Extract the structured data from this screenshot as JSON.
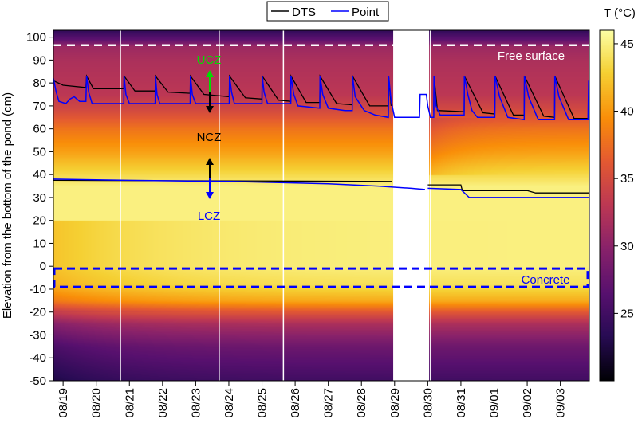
{
  "chart_data": {
    "type": "heatmap",
    "ylabel": "Elevation from the bottom of the pond (cm)",
    "xlabel": "",
    "ylim": [
      -50,
      103
    ],
    "xlim": [
      "08/18 17:00",
      "09/03 21:00"
    ],
    "yticks": [
      100,
      90,
      80,
      70,
      60,
      50,
      40,
      30,
      20,
      10,
      0,
      -10,
      -20,
      -30,
      -40,
      -50
    ],
    "xticks": [
      "08/19",
      "08/20",
      "08/21",
      "08/22",
      "08/23",
      "08/24",
      "08/25",
      "08/26",
      "08/27",
      "08/28",
      "08/29",
      "08/30",
      "08/31",
      "09/01",
      "09/02",
      "09/03"
    ],
    "colorbar": {
      "label": "T (°C)",
      "range": [
        20,
        46
      ],
      "ticks": [
        45,
        40,
        35,
        30,
        25
      ],
      "colormap": "inferno"
    },
    "temperature_profile": [
      [
        103,
        24
      ],
      [
        99,
        27
      ],
      [
        96,
        31
      ],
      [
        90,
        32
      ],
      [
        75,
        33
      ],
      [
        68,
        35
      ],
      [
        60,
        38
      ],
      [
        50,
        40.5
      ],
      [
        42,
        43
      ],
      [
        35,
        45
      ],
      [
        0,
        45
      ],
      [
        -8,
        44
      ],
      [
        -15,
        41
      ],
      [
        -20,
        36
      ],
      [
        -25,
        32
      ],
      [
        -35,
        28
      ],
      [
        -50,
        25
      ]
    ],
    "data_gap": [
      "08/28 23:00",
      "08/30 01:00"
    ],
    "vertical_markers": [
      "08/20 17:30",
      "08/23 17:00",
      "08/25 15:30",
      "08/30 02:00"
    ],
    "legend": {
      "placement": "top-center",
      "entries": [
        {
          "name": "DTS",
          "color": "#000000"
        },
        {
          "name": "Point",
          "color": "#0000ff"
        }
      ]
    },
    "series": [
      {
        "name": "DTS",
        "color": "#000000",
        "segments": [
          [
            [
              "08/18 17:00",
              81
            ],
            [
              "08/19 00:00",
              79
            ],
            [
              "08/19 16:30",
              78
            ],
            [
              "08/19 17:00",
              83
            ],
            [
              "08/19 22:00",
              77.5
            ],
            [
              "08/20 20:00",
              77.5
            ],
            [
              "08/20 20:10",
              83
            ],
            [
              "08/21 04:00",
              76.5
            ],
            [
              "08/21 18:40",
              76.5
            ],
            [
              "08/21 18:50",
              83
            ],
            [
              "08/22 04:00",
              76
            ],
            [
              "08/22 20:00",
              75.5
            ],
            [
              "08/22 20:10",
              83
            ],
            [
              "08/23 06:00",
              75
            ],
            [
              "08/24 00:20",
              74
            ],
            [
              "08/24 00:30",
              83
            ],
            [
              "08/24 12:00",
              73.5
            ],
            [
              "08/25 00:00",
              73
            ],
            [
              "08/25 00:10",
              83
            ],
            [
              "08/25 12:00",
              72.5
            ],
            [
              "08/25 20:50",
              72
            ],
            [
              "08/25 21:00",
              83
            ],
            [
              "08/26 08:00",
              71.5
            ],
            [
              "08/26 17:50",
              71.5
            ],
            [
              "08/26 18:00",
              83
            ],
            [
              "08/27 06:00",
              71
            ],
            [
              "08/27 17:20",
              70.5
            ],
            [
              "08/27 17:30",
              83
            ],
            [
              "08/28 06:00",
              70
            ],
            [
              "08/28 19:30",
              70
            ],
            [
              "08/28 19:40",
              83
            ],
            [
              "08/28 21:30",
              70
            ]
          ],
          [
            [
              "08/30 04:20",
              68
            ],
            [
              "08/30 04:30",
              83
            ],
            [
              "08/30 07:00",
              68
            ],
            [
              "08/31 02:20",
              67.5
            ],
            [
              "08/31 02:30",
              83
            ],
            [
              "08/31 16:00",
              67
            ],
            [
              "09/01 00:30",
              66.5
            ],
            [
              "09/01 00:45",
              83
            ],
            [
              "09/01 14:00",
              66
            ],
            [
              "09/01 21:50",
              66
            ],
            [
              "09/01 22:00",
              83
            ],
            [
              "09/02 12:00",
              65.5
            ],
            [
              "09/02 19:50",
              65
            ],
            [
              "09/02 20:00",
              83
            ],
            [
              "09/03 10:00",
              64.5
            ],
            [
              "09/03 20:30",
              64.5
            ]
          ],
          [
            [
              "08/18 17:00",
              37.5
            ],
            [
              "08/28 22:00",
              37
            ]
          ],
          [
            [
              "08/30 00:00",
              35.5
            ],
            [
              "08/31 00:00",
              35.5
            ],
            [
              "08/31 01:00",
              33
            ],
            [
              "09/02 00:00",
              33
            ],
            [
              "09/02 06:00",
              32
            ],
            [
              "09/03 20:30",
              32
            ]
          ]
        ]
      },
      {
        "name": "Point",
        "color": "#0000ff",
        "segments": [
          [
            [
              "08/18 17:00",
              82
            ],
            [
              "08/18 19:00",
              76
            ],
            [
              "08/18 21:00",
              72
            ],
            [
              "08/19 02:00",
              71
            ],
            [
              "08/19 05:00",
              73
            ],
            [
              "08/19 08:00",
              74
            ],
            [
              "08/19 12:00",
              72
            ],
            [
              "08/19 16:30",
              72
            ],
            [
              "08/19 17:00",
              83
            ],
            [
              "08/19 18:30",
              76
            ],
            [
              "08/19 21:00",
              71
            ],
            [
              "08/20 20:00",
              71
            ],
            [
              "08/20 20:10",
              83
            ],
            [
              "08/20 21:30",
              75
            ],
            [
              "08/21 00:00",
              71
            ],
            [
              "08/21 18:40",
              71
            ],
            [
              "08/21 18:50",
              83
            ],
            [
              "08/21 20:00",
              75
            ],
            [
              "08/21 22:00",
              71
            ],
            [
              "08/22 20:00",
              71
            ],
            [
              "08/22 20:10",
              83
            ],
            [
              "08/22 21:30",
              75
            ],
            [
              "08/23 00:00",
              71
            ],
            [
              "08/24 00:20",
              71
            ],
            [
              "08/24 00:30",
              83
            ],
            [
              "08/24 02:00",
              76
            ],
            [
              "08/24 04:00",
              71
            ],
            [
              "08/25 00:00",
              71
            ],
            [
              "08/25 00:10",
              83
            ],
            [
              "08/25 01:30",
              76
            ],
            [
              "08/25 04:00",
              71
            ],
            [
              "08/25 20:50",
              71
            ],
            [
              "08/25 21:00",
              83
            ],
            [
              "08/25 23:00",
              75
            ],
            [
              "08/26 02:00",
              70
            ],
            [
              "08/26 17:50",
              69
            ],
            [
              "08/26 18:00",
              83
            ],
            [
              "08/26 20:00",
              75
            ],
            [
              "08/27 00:00",
              69
            ],
            [
              "08/27 12:00",
              68
            ],
            [
              "08/27 17:20",
              68
            ],
            [
              "08/27 17:30",
              83
            ],
            [
              "08/27 19:30",
              74
            ],
            [
              "08/28 02:00",
              68
            ],
            [
              "08/28 10:00",
              66
            ],
            [
              "08/28 19:30",
              65
            ],
            [
              "08/28 19:40",
              83
            ],
            [
              "08/28 21:30",
              72
            ],
            [
              "08/29 00:00",
              65
            ],
            [
              "08/29 18:00",
              65
            ],
            [
              "08/29 18:30",
              75
            ],
            [
              "08/29 23:00",
              75
            ],
            [
              "08/30 00:00",
              70
            ],
            [
              "08/30 02:00",
              65
            ],
            [
              "08/30 04:20",
              65
            ],
            [
              "08/30 04:30",
              83
            ],
            [
              "08/30 06:00",
              70
            ],
            [
              "08/30 09:00",
              66
            ],
            [
              "08/31 02:20",
              66
            ],
            [
              "08/31 02:30",
              83
            ],
            [
              "08/31 05:00",
              75
            ],
            [
              "08/31 08:00",
              68
            ],
            [
              "08/31 12:00",
              65
            ],
            [
              "09/01 00:30",
              65
            ],
            [
              "09/01 00:45",
              83
            ],
            [
              "09/01 04:00",
              74
            ],
            [
              "09/01 10:00",
              65
            ],
            [
              "09/01 21:50",
              64
            ],
            [
              "09/01 22:00",
              83
            ],
            [
              "09/02 01:00",
              74
            ],
            [
              "09/02 08:00",
              64
            ],
            [
              "09/02 19:50",
              64
            ],
            [
              "09/02 20:00",
              83
            ],
            [
              "09/02 23:00",
              74
            ],
            [
              "09/03 06:00",
              64
            ],
            [
              "09/03 20:00",
              64
            ],
            [
              "09/03 20:30",
              81
            ]
          ],
          [
            [
              "08/18 17:00",
              38
            ],
            [
              "08/21 00:00",
              37.5
            ],
            [
              "08/24 00:00",
              37
            ],
            [
              "08/27 00:00",
              36
            ],
            [
              "08/28 12:00",
              35
            ],
            [
              "08/29 12:00",
              34
            ],
            [
              "08/29 22:00",
              33.5
            ]
          ],
          [
            [
              "08/30 00:00",
              34
            ],
            [
              "08/31 00:00",
              33.5
            ],
            [
              "08/31 06:00",
              30
            ],
            [
              "09/03 20:30",
              30
            ]
          ]
        ]
      }
    ],
    "annotations": {
      "free_surface": {
        "text": "Free surface",
        "elevation": 96.5,
        "color": "#ffffff"
      },
      "concrete": {
        "text": "Concrete",
        "elevation_range": [
          -9,
          -1
        ],
        "color": "#0000ff"
      },
      "ucz": {
        "text": "UCZ",
        "color": "#00dd00"
      },
      "ncz": {
        "text": "NCZ",
        "color": "#000000"
      },
      "lcz": {
        "text": "LCZ",
        "color": "#0000ff"
      }
    }
  }
}
